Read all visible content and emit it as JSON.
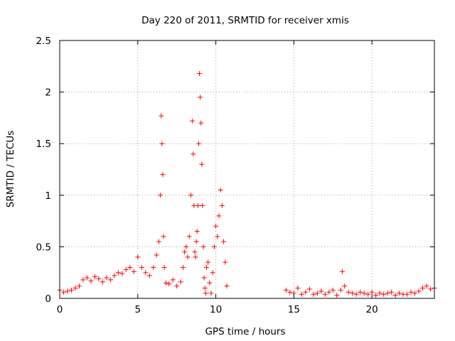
{
  "chart_data": {
    "type": "scatter",
    "title": "Day 220 of 2011, SRMTID for receiver xmis",
    "xlabel": "GPS time / hours",
    "ylabel": "SRMTID / TECUs",
    "xlim": [
      0,
      24
    ],
    "ylim": [
      0,
      2.5
    ],
    "xticks": [
      0,
      5,
      10,
      15,
      20
    ],
    "xtick_labels": [
      "0",
      "5",
      "10",
      "15",
      "20"
    ],
    "yticks": [
      0,
      0.5,
      1,
      1.5,
      2,
      2.5
    ],
    "ytick_labels": [
      "0",
      "0.5",
      "1",
      "1.5",
      "2",
      "2.5"
    ],
    "grid": true,
    "marker": "+",
    "color": "#ff0000",
    "series": [
      {
        "name": "SRMTID",
        "x": [
          0.0,
          0.25,
          0.5,
          0.75,
          1.0,
          1.25,
          1.5,
          1.75,
          2.0,
          2.25,
          2.5,
          2.75,
          3.0,
          3.25,
          3.5,
          3.75,
          4.0,
          4.25,
          4.5,
          4.75,
          5.0,
          5.25,
          5.5,
          5.75,
          6.0,
          6.2,
          6.35,
          6.45,
          6.5,
          6.55,
          6.6,
          6.65,
          6.7,
          6.8,
          7.0,
          7.25,
          7.5,
          7.75,
          7.9,
          8.0,
          8.1,
          8.2,
          8.3,
          8.4,
          8.5,
          8.55,
          8.6,
          8.65,
          8.7,
          8.75,
          8.8,
          8.85,
          8.9,
          8.95,
          9.0,
          9.05,
          9.1,
          9.15,
          9.2,
          9.25,
          9.3,
          9.35,
          9.4,
          9.5,
          9.6,
          9.7,
          9.8,
          9.9,
          10.0,
          10.1,
          10.2,
          10.3,
          10.4,
          10.5,
          10.6,
          10.7,
          14.5,
          14.75,
          15.0,
          15.25,
          15.5,
          15.75,
          16.0,
          16.25,
          16.5,
          16.75,
          17.0,
          17.25,
          17.5,
          17.75,
          18.0,
          18.1,
          18.25,
          18.5,
          18.75,
          19.0,
          19.25,
          19.5,
          19.75,
          20.0,
          20.25,
          20.5,
          20.75,
          21.0,
          21.25,
          21.5,
          21.75,
          22.0,
          22.25,
          22.5,
          22.75,
          23.0,
          23.25,
          23.5,
          23.75,
          24.0
        ],
        "y": [
          0.08,
          0.06,
          0.07,
          0.08,
          0.1,
          0.12,
          0.18,
          0.2,
          0.17,
          0.21,
          0.19,
          0.16,
          0.2,
          0.18,
          0.22,
          0.25,
          0.24,
          0.28,
          0.3,
          0.26,
          0.4,
          0.3,
          0.25,
          0.22,
          0.3,
          0.42,
          0.55,
          1.0,
          1.77,
          1.5,
          1.2,
          0.6,
          0.3,
          0.15,
          0.14,
          0.18,
          0.12,
          0.16,
          0.3,
          0.45,
          0.5,
          0.4,
          0.6,
          1.0,
          1.72,
          1.4,
          0.9,
          0.45,
          0.4,
          0.55,
          0.65,
          0.9,
          1.5,
          2.18,
          1.95,
          1.7,
          1.3,
          0.9,
          0.5,
          0.2,
          0.1,
          0.05,
          0.3,
          0.35,
          0.15,
          0.05,
          0.25,
          0.5,
          0.7,
          0.6,
          0.8,
          1.05,
          0.9,
          0.55,
          0.35,
          0.12,
          0.08,
          0.06,
          0.05,
          0.1,
          0.04,
          0.06,
          0.09,
          0.04,
          0.05,
          0.07,
          0.04,
          0.06,
          0.08,
          0.03,
          0.08,
          0.26,
          0.12,
          0.06,
          0.05,
          0.04,
          0.06,
          0.05,
          0.04,
          0.06,
          0.03,
          0.05,
          0.04,
          0.05,
          0.06,
          0.03,
          0.05,
          0.04,
          0.04,
          0.06,
          0.05,
          0.07,
          0.1,
          0.12,
          0.09,
          0.1
        ]
      }
    ]
  }
}
